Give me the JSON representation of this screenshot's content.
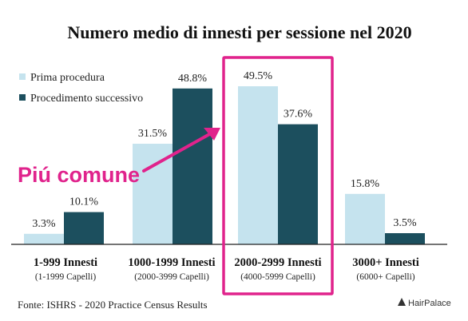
{
  "chart_data": {
    "type": "bar",
    "title": "Numero medio di innesti per sessione nel 2020",
    "categories": [
      "1-999 Innesti",
      "1000-1999 Innesti",
      "2000-2999 Innesti",
      "3000+ Innesti"
    ],
    "subcategories": [
      "(1-1999 Capelli)",
      "(2000-3999 Capelli)",
      "(4000-5999 Capelli)",
      "(6000+ Capelli)"
    ],
    "series": [
      {
        "name": "Prima procedura",
        "values": [
          3.3,
          31.5,
          49.5,
          15.8
        ],
        "labels": [
          "3.3%",
          "31.5%",
          "49.5%",
          "15.8%"
        ],
        "color": "#c5e3ee"
      },
      {
        "name": "Procedimento successivo",
        "values": [
          10.1,
          48.8,
          37.6,
          3.5
        ],
        "labels": [
          "10.1%",
          "48.8%",
          "37.6%",
          "3.5%"
        ],
        "color": "#1c4f5e"
      }
    ],
    "ylim": [
      0,
      55
    ],
    "legend_position": "top-left",
    "grid": false,
    "highlight_category": "2000-2999 Innesti",
    "highlight_color": "#e0238c",
    "annotation": "Piú comune"
  },
  "source": "Fonte: ISHRS - 2020 Practice Census Results",
  "brand": "HairPalace"
}
